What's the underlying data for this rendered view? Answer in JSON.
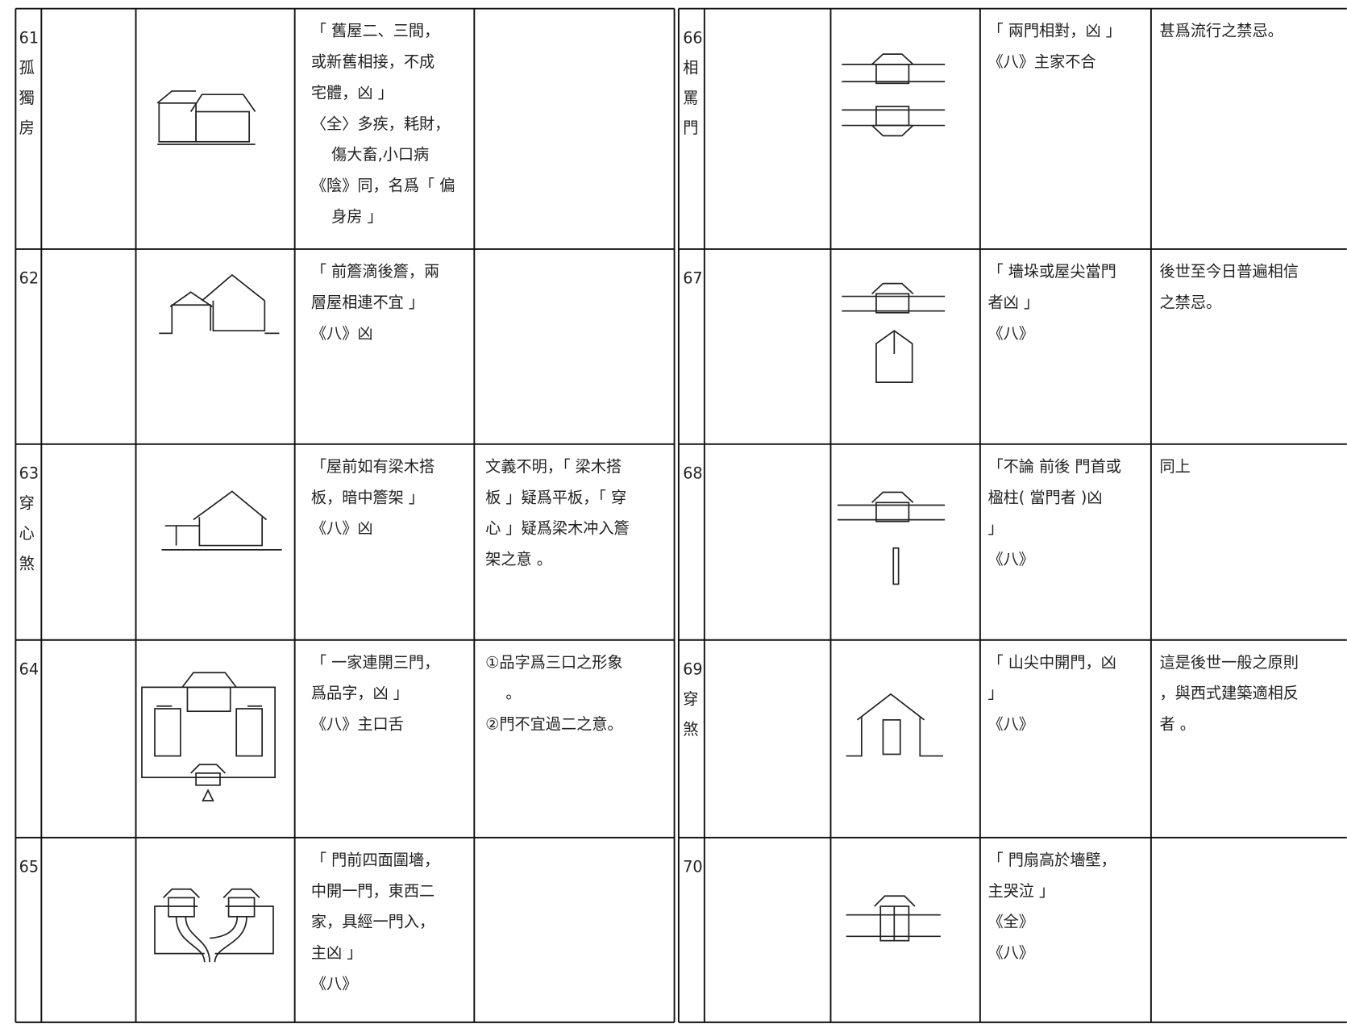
{
  "left": [
    {
      "number": "61",
      "name": [
        "孤",
        "獨",
        "房"
      ],
      "text": [
        "「 舊屋二、三間，",
        "或新舊相接，不成",
        "宅體，凶 」",
        "〈全〉多疾，耗財，",
        "　 傷大畜,小口病",
        "《陰》同，名爲「 偏",
        "　 身房 」"
      ],
      "note": []
    },
    {
      "number": "62",
      "name": [],
      "text": [
        "「 前簷滴後簷，兩",
        "層屋相連不宜 」",
        "《八》凶"
      ],
      "note": []
    },
    {
      "number": "63",
      "name": [
        "穿",
        "心",
        "煞"
      ],
      "text": [
        "「屋前如有梁木搭",
        "板，暗中簷架 」",
        "《八》凶"
      ],
      "note": [
        "文義不明，「 梁木搭",
        "板 」疑爲平板，「 穿",
        "心 」疑爲梁木冲入簷",
        "架之意 。"
      ]
    },
    {
      "number": "64",
      "name": [],
      "text": [
        "「 一家連開三門，",
        "爲品字，凶 」",
        "《八》主口舌"
      ],
      "note": [
        "①品字爲三口之形象",
        "　 。",
        "②門不宜過二之意。"
      ]
    },
    {
      "number": "65",
      "name": [],
      "text": [
        "「 門前四面圍墻，",
        "中開一門，東西二",
        "家，具經一門入，",
        "主凶 」",
        "《八》"
      ],
      "note": []
    }
  ],
  "right": [
    {
      "number": "66",
      "name": [
        "相",
        "罵",
        "門"
      ],
      "text": [
        "「 兩門相對，凶 」",
        "《八》主家不合"
      ],
      "note": [
        "甚爲流行之禁忌。"
      ]
    },
    {
      "number": "67",
      "name": [],
      "text": [
        "「 墻垛或屋尖當門",
        "者凶 」",
        "《八》"
      ],
      "note": [
        "後世至今日普遍相信",
        "之禁忌。"
      ]
    },
    {
      "number": "68",
      "name": [],
      "text": [
        "「不論 前後 門首或",
        "楹柱( 當門者 )凶",
        "」",
        "《八》"
      ],
      "note": [
        "同上"
      ]
    },
    {
      "number": "69",
      "name": [
        "穿",
        "煞"
      ],
      "text": [
        "「 山尖中開門，凶",
        "」",
        "《八》"
      ],
      "note": [
        "這是後世一般之原則",
        "，與西式建築適相反",
        "者 。"
      ]
    },
    {
      "number": "70",
      "name": [],
      "text": [
        "「 門扇高於墻壁，",
        "主哭泣 」",
        "《全》",
        "《八》"
      ],
      "note": []
    }
  ]
}
